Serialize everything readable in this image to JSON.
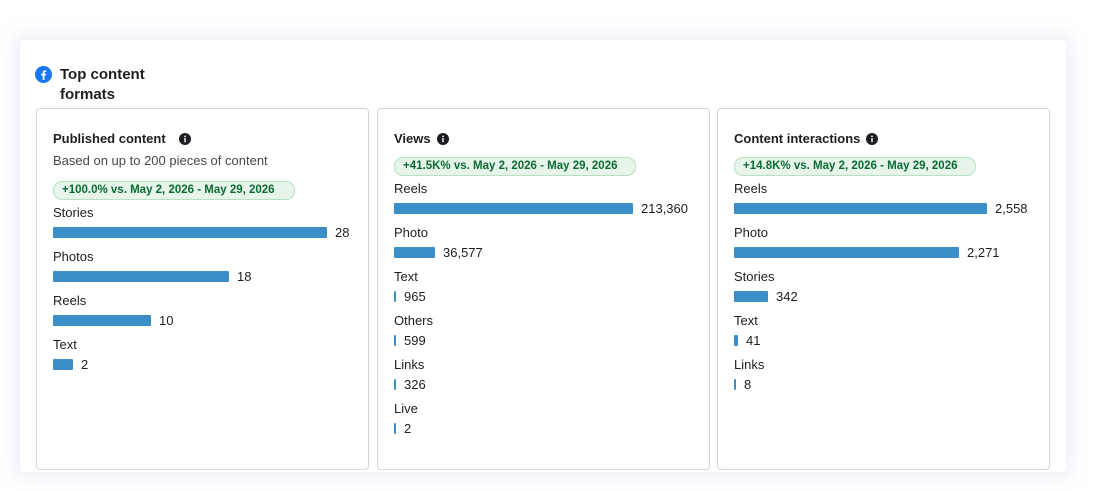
{
  "header": {
    "title": "Top content formats",
    "icon": "facebook-icon",
    "brand_color": "#1877F2"
  },
  "colors": {
    "bar": "#3B8FC8",
    "badge_bg": "#E6F4EA",
    "badge_text": "#0B6B35"
  },
  "panels": [
    {
      "title": "Published content",
      "subtitle": "Based on up to 200 pieces of content",
      "badge": "+100.0% vs. May 2, 2026 - May 29, 2026",
      "max": 28,
      "rows": [
        {
          "label": "Stories",
          "value": 28,
          "display": "28"
        },
        {
          "label": "Photos",
          "value": 18,
          "display": "18"
        },
        {
          "label": "Reels",
          "value": 10,
          "display": "10"
        },
        {
          "label": "Text",
          "value": 2,
          "display": "2"
        }
      ]
    },
    {
      "title": "Views",
      "badge": "+41.5K% vs. May 2, 2026 - May 29, 2026",
      "max": 213360,
      "rows": [
        {
          "label": "Reels",
          "value": 213360,
          "display": "213,360"
        },
        {
          "label": "Photo",
          "value": 36577,
          "display": "36,577"
        },
        {
          "label": "Text",
          "value": 965,
          "display": "965"
        },
        {
          "label": "Others",
          "value": 599,
          "display": "599"
        },
        {
          "label": "Links",
          "value": 326,
          "display": "326"
        },
        {
          "label": "Live",
          "value": 2,
          "display": "2"
        }
      ]
    },
    {
      "title": "Content interactions",
      "badge": "+14.8K% vs. May 2, 2026 - May 29, 2026",
      "max": 2558,
      "rows": [
        {
          "label": "Reels",
          "value": 2558,
          "display": "2,558"
        },
        {
          "label": "Photo",
          "value": 2271,
          "display": "2,271"
        },
        {
          "label": "Stories",
          "value": 342,
          "display": "342"
        },
        {
          "label": "Text",
          "value": 41,
          "display": "41"
        },
        {
          "label": "Links",
          "value": 8,
          "display": "8"
        }
      ]
    }
  ]
}
